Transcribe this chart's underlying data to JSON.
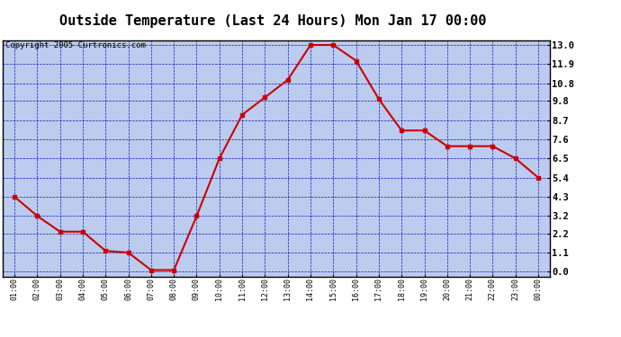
{
  "title": "Outside Temperature (Last 24 Hours) Mon Jan 17 00:00",
  "copyright": "Copyright 2005 Curtronics.com",
  "x_labels": [
    "01:00",
    "02:00",
    "03:00",
    "04:00",
    "05:00",
    "06:00",
    "07:00",
    "08:00",
    "09:00",
    "10:00",
    "11:00",
    "12:00",
    "13:00",
    "14:00",
    "15:00",
    "16:00",
    "17:00",
    "18:00",
    "19:00",
    "20:00",
    "21:00",
    "22:00",
    "23:00",
    "00:00"
  ],
  "y_values": [
    4.3,
    3.2,
    2.3,
    2.3,
    1.2,
    1.1,
    0.1,
    0.1,
    3.2,
    6.5,
    9.0,
    10.0,
    11.0,
    13.0,
    13.0,
    12.1,
    9.9,
    8.1,
    8.1,
    7.2,
    7.2,
    7.2,
    6.5,
    5.4
  ],
  "y_ticks": [
    0.0,
    1.1,
    2.2,
    3.2,
    4.3,
    5.4,
    6.5,
    7.6,
    8.7,
    9.8,
    10.8,
    11.9,
    13.0
  ],
  "line_color": "#cc0000",
  "marker_color": "#cc0000",
  "bg_color": "#bbccee",
  "grid_color": "#0000bb",
  "border_color": "#000000",
  "title_fontsize": 11,
  "ylim": [
    0.0,
    13.0
  ],
  "copyright_fontsize": 6.5
}
